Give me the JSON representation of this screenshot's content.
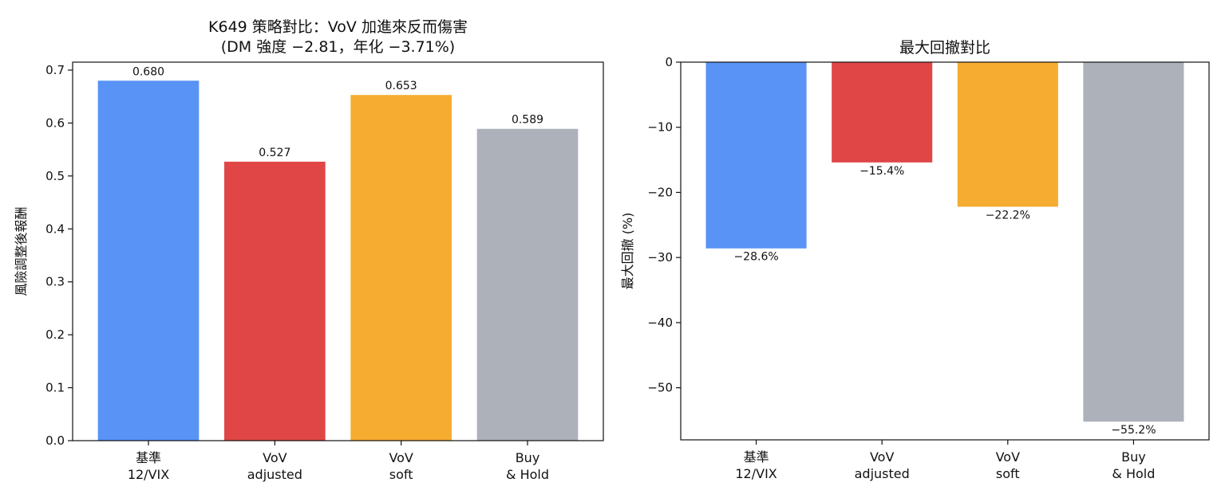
{
  "chart_data": [
    {
      "type": "bar",
      "title_lines": [
        "K649 策略對比：VoV 加進來反而傷害",
        "(DM 強度 −2.81，年化 −3.71%)"
      ],
      "categories": [
        [
          "基準",
          "12/VIX"
        ],
        [
          "VoV",
          "adjusted"
        ],
        [
          "VoV",
          "soft"
        ],
        [
          "Buy",
          "& Hold"
        ]
      ],
      "values": [
        0.68,
        0.527,
        0.653,
        0.589
      ],
      "value_labels": [
        "0.680",
        "0.527",
        "0.653",
        "0.589"
      ],
      "colors": [
        "#5893f5",
        "#e04646",
        "#f5ac30",
        "#adb1ba"
      ],
      "ylabel": "風險調整後報酬",
      "ylim": [
        0,
        0.715
      ],
      "yticks": [
        0.0,
        0.1,
        0.2,
        0.3,
        0.4,
        0.5,
        0.6,
        0.7
      ],
      "ytick_labels": [
        "0.0",
        "0.1",
        "0.2",
        "0.3",
        "0.4",
        "0.5",
        "0.6",
        "0.7"
      ]
    },
    {
      "type": "bar",
      "title_lines": [
        "最大回撤對比"
      ],
      "categories": [
        [
          "基準",
          "12/VIX"
        ],
        [
          "VoV",
          "adjusted"
        ],
        [
          "VoV",
          "soft"
        ],
        [
          "Buy",
          "& Hold"
        ]
      ],
      "values": [
        -28.6,
        -15.4,
        -22.2,
        -55.2
      ],
      "value_labels": [
        "−28.6%",
        "−15.4%",
        "−22.2%",
        "−55.2%"
      ],
      "colors": [
        "#5893f5",
        "#e04646",
        "#f5ac30",
        "#adb1ba"
      ],
      "ylabel": "最大回撤 (%)",
      "ylim": [
        -58,
        0
      ],
      "yticks": [
        0,
        -10,
        -20,
        -30,
        -40,
        -50
      ],
      "ytick_labels": [
        "0",
        "−10",
        "−20",
        "−30",
        "−40",
        "−50"
      ]
    }
  ]
}
